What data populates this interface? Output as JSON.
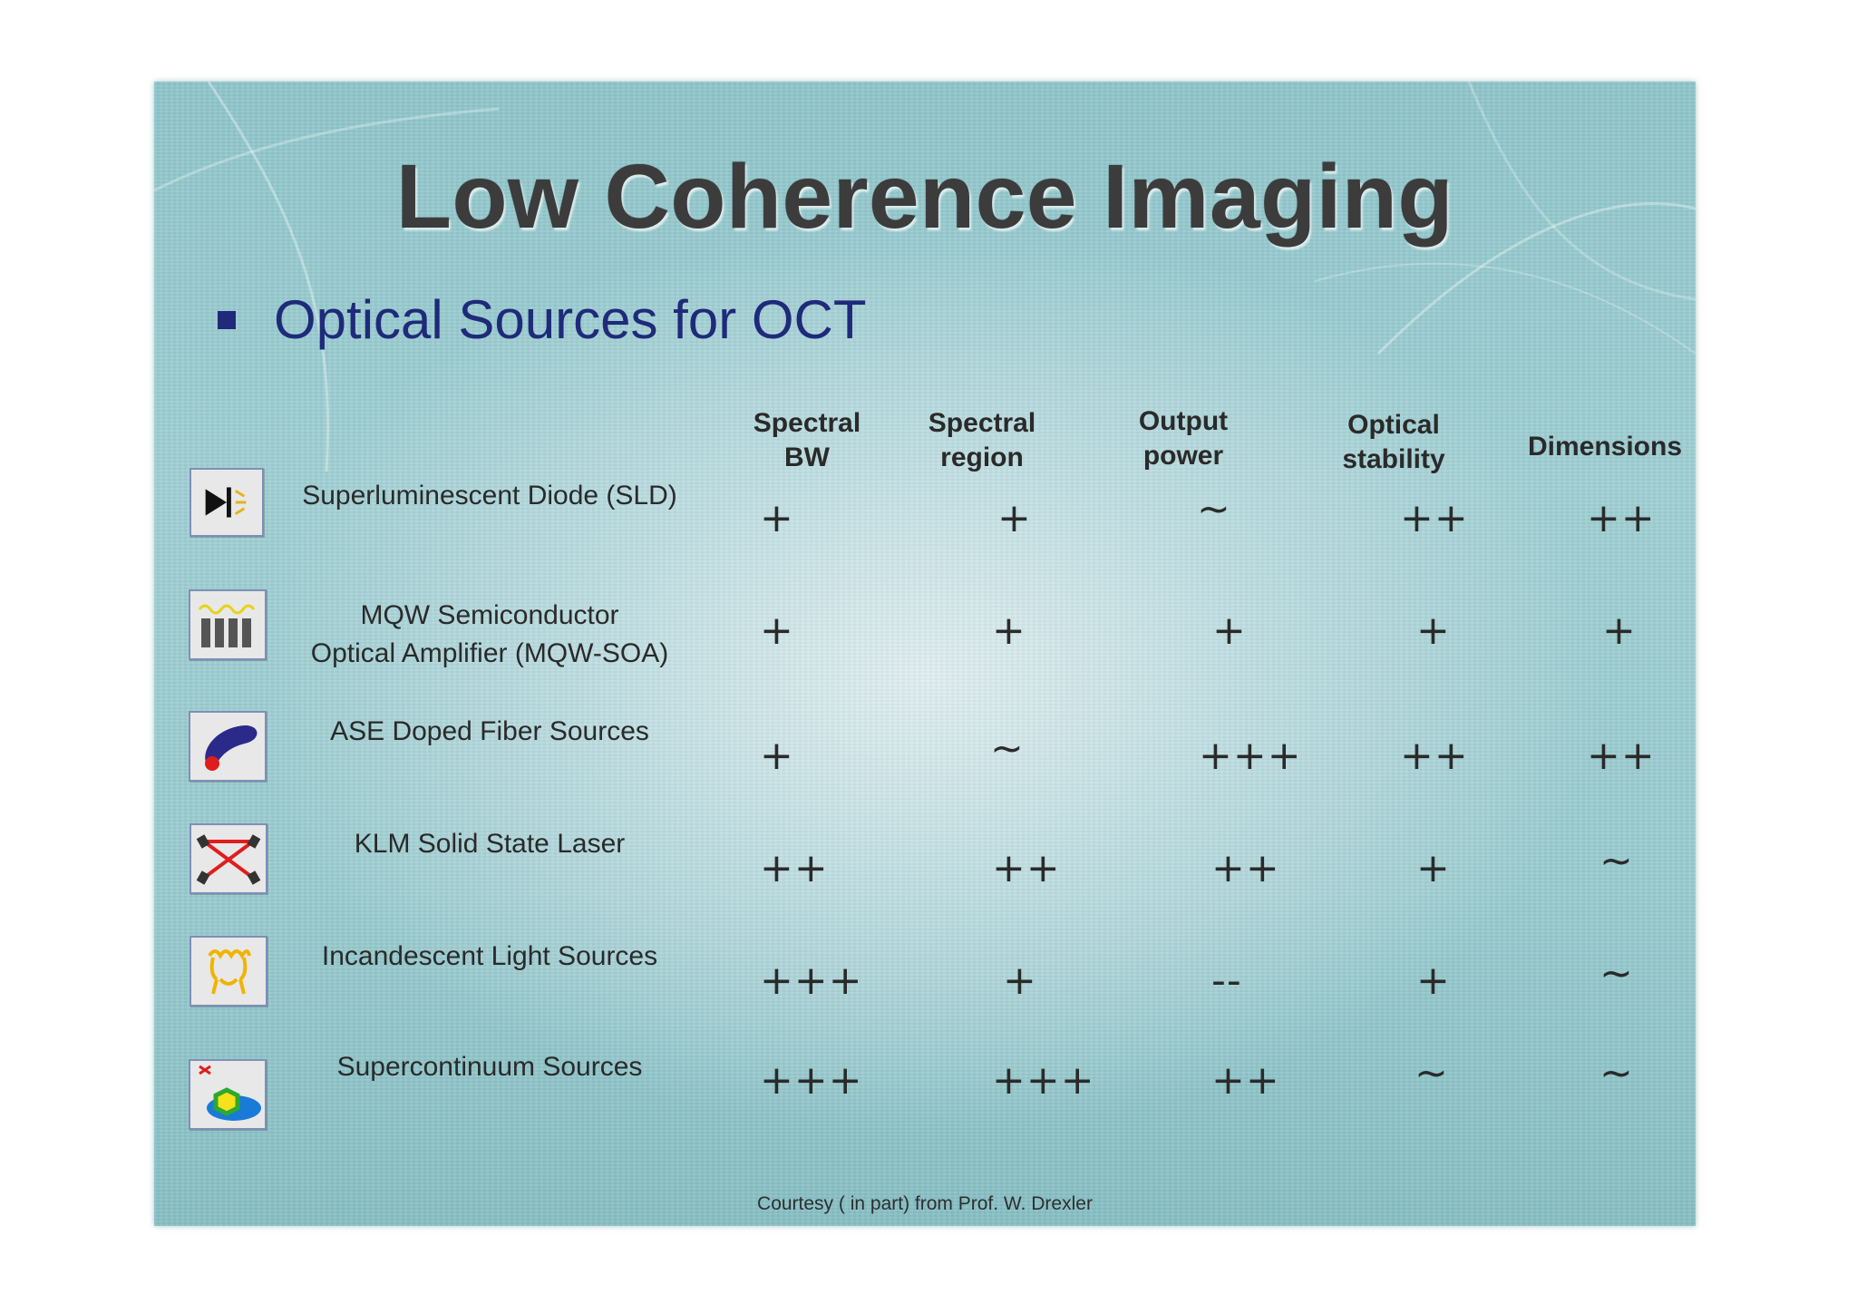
{
  "title": "Low Coherence Imaging",
  "bullet": "Optical Sources for OCT",
  "columns": [
    "Spectral\nBW",
    "Spectral\nregion",
    "Output\npower",
    "Optical\nstability",
    "Dimensions"
  ],
  "rows": [
    {
      "label": "Superluminescent Diode (SLD)",
      "icon": "sld-diode-icon",
      "ratings": [
        "+",
        "+",
        "~",
        "++",
        "++"
      ]
    },
    {
      "label": "MQW Semiconductor\nOptical Amplifier (MQW-SOA)",
      "icon": "mqw-soa-icon",
      "ratings": [
        "+",
        "+",
        "+",
        "+",
        "+"
      ]
    },
    {
      "label": "ASE Doped Fiber Sources",
      "icon": "fiber-source-icon",
      "ratings": [
        "+",
        "~",
        "+++",
        "++",
        "++"
      ]
    },
    {
      "label": "KLM Solid State Laser",
      "icon": "klm-laser-icon",
      "ratings": [
        "++",
        "++",
        "++",
        "+",
        "~"
      ]
    },
    {
      "label": "Incandescent Light Sources",
      "icon": "incandescent-lamp-icon",
      "ratings": [
        "+++",
        "+",
        "--",
        "+",
        "~"
      ]
    },
    {
      "label": "Supercontinuum Sources",
      "icon": "supercontinuum-icon",
      "ratings": [
        "+++",
        "+++",
        "++",
        "~",
        "~"
      ]
    }
  ],
  "footer": "Courtesy ( in part) from Prof. W. Drexler",
  "colors": {
    "title": "#3c3c3c",
    "bullet": "#1f2a7a",
    "background": "#9fcfd3"
  }
}
